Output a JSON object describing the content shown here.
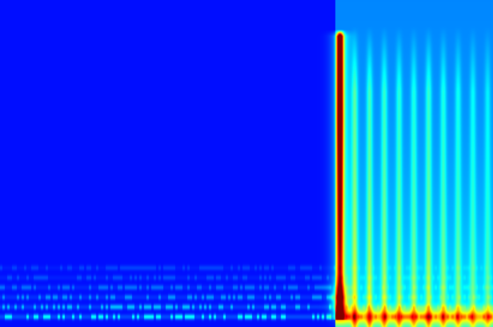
{
  "chart_data": {
    "type": "heatmap",
    "subtype": "spectrogram",
    "colormap": "jet",
    "background_color": "#000a6e",
    "title": "",
    "xlabel": "",
    "ylabel": "",
    "grid": false,
    "legend": "none",
    "x_range": [
      0,
      1
    ],
    "y_range": [
      0,
      1
    ],
    "value_range": [
      0,
      1
    ],
    "background_level": 0.02,
    "onset_x": 0.68,
    "dominant_ridge": {
      "x": 0.69,
      "peak_value": 0.95,
      "top_y": 0.91,
      "bottom_y": 0.02,
      "peak_y_range": [
        0.64,
        0.9
      ]
    },
    "secondary_ridges": [
      {
        "x": 0.72,
        "value": 0.3
      },
      {
        "x": 0.75,
        "value": 0.28
      },
      {
        "x": 0.78,
        "value": 0.26
      },
      {
        "x": 0.81,
        "value": 0.24
      },
      {
        "x": 0.84,
        "value": 0.22
      },
      {
        "x": 0.87,
        "value": 0.26
      },
      {
        "x": 0.9,
        "value": 0.22
      },
      {
        "x": 0.93,
        "value": 0.2
      },
      {
        "x": 0.96,
        "value": 0.18
      },
      {
        "x": 0.99,
        "value": 0.16
      }
    ],
    "low_frequency_bands": [
      {
        "y": 0.03,
        "value": 0.55
      },
      {
        "y": 0.06,
        "value": 0.4
      },
      {
        "y": 0.09,
        "value": 0.3
      },
      {
        "y": 0.12,
        "value": 0.22
      },
      {
        "y": 0.15,
        "value": 0.15
      },
      {
        "y": 0.18,
        "value": 0.12
      }
    ]
  }
}
